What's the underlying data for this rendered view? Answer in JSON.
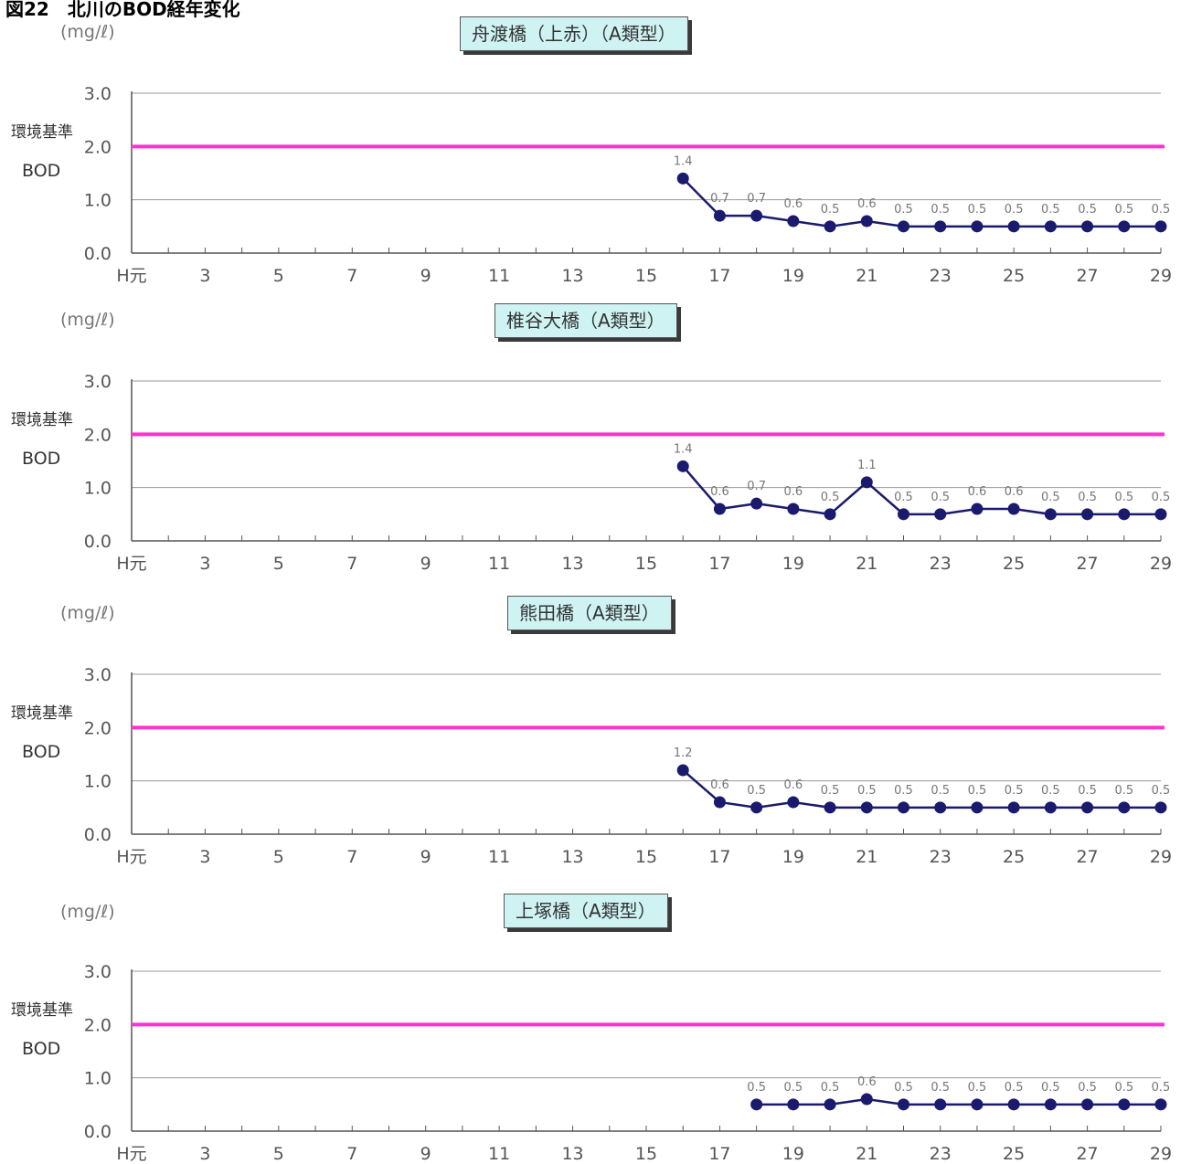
{
  "figure_title": "図22　北川のBOD経年変化",
  "chart_data": [
    {
      "type": "line",
      "title": "舟渡橋（上赤）（A類型）",
      "unit_label": "(mg/ℓ)",
      "side_label_1": "環境基準",
      "side_label_2": "BOD",
      "x_tick_labels": [
        "H元",
        "3",
        "5",
        "7",
        "9",
        "11",
        "13",
        "15",
        "17",
        "19",
        "21",
        "23",
        "25",
        "27",
        "29"
      ],
      "y_tick_labels": [
        "0.0",
        "1.0",
        "2.0",
        "3.0"
      ],
      "ylim": [
        0,
        3
      ],
      "xlim": [
        1,
        29
      ],
      "standard_line": 2.0,
      "standard_color": "#ff33cc",
      "series_color": "#1a1a6e",
      "x": [
        16,
        17,
        18,
        19,
        20,
        21,
        22,
        23,
        24,
        25,
        26,
        27,
        28,
        29
      ],
      "values": [
        1.4,
        0.7,
        0.7,
        0.6,
        0.5,
        0.6,
        0.5,
        0.5,
        0.5,
        0.5,
        0.5,
        0.5,
        0.5,
        0.5
      ],
      "data_labels": [
        "1.4",
        "0.7",
        "0.7",
        "0.6",
        "0.5",
        "0.6",
        "0.5",
        "0.5",
        "0.5",
        "0.5",
        "0.5",
        "0.5",
        "0.5",
        "0.5"
      ]
    },
    {
      "type": "line",
      "title": "椎谷大橋（A類型）",
      "unit_label": "(mg/ℓ)",
      "side_label_1": "環境基準",
      "side_label_2": "BOD",
      "x_tick_labels": [
        "H元",
        "3",
        "5",
        "7",
        "9",
        "11",
        "13",
        "15",
        "17",
        "19",
        "21",
        "23",
        "25",
        "27",
        "29"
      ],
      "y_tick_labels": [
        "0.0",
        "1.0",
        "2.0",
        "3.0"
      ],
      "ylim": [
        0,
        3
      ],
      "xlim": [
        1,
        29
      ],
      "standard_line": 2.0,
      "standard_color": "#ff33cc",
      "series_color": "#1a1a6e",
      "x": [
        16,
        17,
        18,
        19,
        20,
        21,
        22,
        23,
        24,
        25,
        26,
        27,
        28,
        29
      ],
      "values": [
        1.4,
        0.6,
        0.7,
        0.6,
        0.5,
        1.1,
        0.5,
        0.5,
        0.6,
        0.6,
        0.5,
        0.5,
        0.5,
        0.5
      ],
      "data_labels": [
        "1.4",
        "0.6",
        "0.7",
        "0.6",
        "0.5",
        "1.1",
        "0.5",
        "0.5",
        "0.6",
        "0.6",
        "0.5",
        "0.5",
        "0.5",
        "0.5"
      ]
    },
    {
      "type": "line",
      "title": "熊田橋（A類型）",
      "unit_label": "(mg/ℓ)",
      "side_label_1": "環境基準",
      "side_label_2": "BOD",
      "x_tick_labels": [
        "H元",
        "3",
        "5",
        "7",
        "9",
        "11",
        "13",
        "15",
        "17",
        "19",
        "21",
        "23",
        "25",
        "27",
        "29"
      ],
      "y_tick_labels": [
        "0.0",
        "1.0",
        "2.0",
        "3.0"
      ],
      "ylim": [
        0,
        3
      ],
      "xlim": [
        1,
        29
      ],
      "standard_line": 2.0,
      "standard_color": "#ff33cc",
      "series_color": "#1a1a6e",
      "x": [
        16,
        17,
        18,
        19,
        20,
        21,
        22,
        23,
        24,
        25,
        26,
        27,
        28,
        29
      ],
      "values": [
        1.2,
        0.6,
        0.5,
        0.6,
        0.5,
        0.5,
        0.5,
        0.5,
        0.5,
        0.5,
        0.5,
        0.5,
        0.5,
        0.5
      ],
      "data_labels": [
        "1.2",
        "0.6",
        "0.5",
        "0.6",
        "0.5",
        "0.5",
        "0.5",
        "0.5",
        "0.5",
        "0.5",
        "0.5",
        "0.5",
        "0.5",
        "0.5"
      ]
    },
    {
      "type": "line",
      "title": "上塚橋（A類型）",
      "unit_label": "(mg/ℓ)",
      "side_label_1": "環境基準",
      "side_label_2": "BOD",
      "x_tick_labels": [
        "H元",
        "3",
        "5",
        "7",
        "9",
        "11",
        "13",
        "15",
        "17",
        "19",
        "21",
        "23",
        "25",
        "27",
        "29"
      ],
      "y_tick_labels": [
        "0.0",
        "1.0",
        "2.0",
        "3.0"
      ],
      "ylim": [
        0,
        3
      ],
      "xlim": [
        1,
        29
      ],
      "standard_line": 2.0,
      "standard_color": "#ff33cc",
      "series_color": "#1a1a6e",
      "x": [
        18,
        19,
        20,
        21,
        22,
        23,
        24,
        25,
        26,
        27,
        28,
        29
      ],
      "values": [
        0.5,
        0.5,
        0.5,
        0.6,
        0.5,
        0.5,
        0.5,
        0.5,
        0.5,
        0.5,
        0.5,
        0.5
      ],
      "data_labels": [
        "0.5",
        "0.5",
        "0.5",
        "0.6",
        "0.5",
        "0.5",
        "0.5",
        "0.5",
        "0.5",
        "0.5",
        "0.5",
        "0.5"
      ]
    }
  ]
}
